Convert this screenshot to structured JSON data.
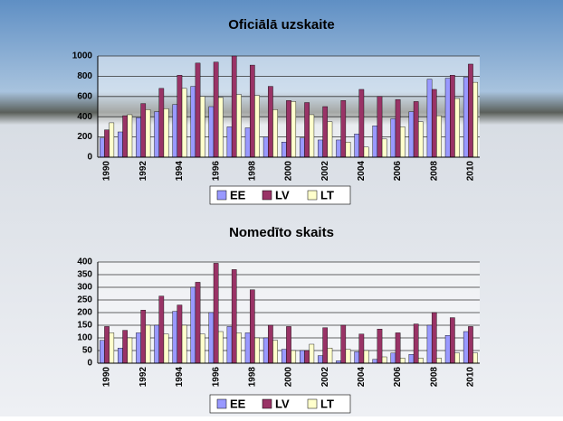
{
  "chart_data": [
    {
      "type": "bar",
      "title": "Oficiālā uzskaite",
      "categories": [
        "1990",
        null,
        "1992",
        null,
        "1994",
        null,
        "1996",
        null,
        "1998",
        null,
        "2000",
        null,
        "2002",
        null,
        "2004",
        null,
        "2006",
        null,
        "2008",
        null,
        "2010"
      ],
      "series": [
        {
          "name": "EE",
          "color": "#9999ff",
          "values": [
            190,
            250,
            390,
            450,
            520,
            700,
            500,
            300,
            290,
            200,
            150,
            190,
            170,
            170,
            230,
            310,
            380,
            450,
            770,
            780,
            790
          ]
        },
        {
          "name": "LV",
          "color": "#993366",
          "values": [
            270,
            410,
            530,
            680,
            810,
            930,
            940,
            1000,
            910,
            700,
            560,
            540,
            500,
            560,
            670,
            600,
            570,
            550,
            670,
            810,
            920
          ]
        },
        {
          "name": "LT",
          "color": "#ffffcc",
          "values": [
            340,
            420,
            470,
            480,
            680,
            600,
            590,
            620,
            610,
            470,
            550,
            420,
            350,
            150,
            100,
            180,
            300,
            350,
            410,
            580,
            740
          ]
        }
      ],
      "ylim": [
        0,
        1000
      ],
      "yticks": [
        0,
        200,
        400,
        600,
        800,
        1000
      ],
      "grid": true,
      "legend": "bottom"
    },
    {
      "type": "bar",
      "title": "Nomedīto skaits",
      "categories": [
        "1990",
        null,
        "1992",
        null,
        "1994",
        null,
        "1996",
        null,
        "1998",
        null,
        "2000",
        null,
        "2002",
        null,
        "2004",
        null,
        "2006",
        null,
        "2008",
        null,
        "2010"
      ],
      "series": [
        {
          "name": "EE",
          "color": "#9999ff",
          "values": [
            90,
            60,
            120,
            150,
            205,
            300,
            200,
            145,
            120,
            100,
            55,
            50,
            30,
            10,
            45,
            15,
            40,
            35,
            150,
            110,
            125
          ]
        },
        {
          "name": "LV",
          "color": "#993366",
          "values": [
            145,
            130,
            210,
            265,
            230,
            320,
            395,
            370,
            290,
            150,
            145,
            50,
            140,
            150,
            115,
            135,
            120,
            155,
            200,
            180,
            145
          ]
        },
        {
          "name": "LT",
          "color": "#ffffcc",
          "values": [
            120,
            100,
            150,
            115,
            150,
            115,
            125,
            120,
            100,
            90,
            50,
            75,
            60,
            55,
            50,
            25,
            20,
            20,
            20,
            40,
            40
          ]
        }
      ],
      "ylim": [
        0,
        400
      ],
      "yticks": [
        0,
        50,
        100,
        150,
        200,
        250,
        300,
        350,
        400
      ],
      "grid": true,
      "legend": "bottom"
    }
  ]
}
